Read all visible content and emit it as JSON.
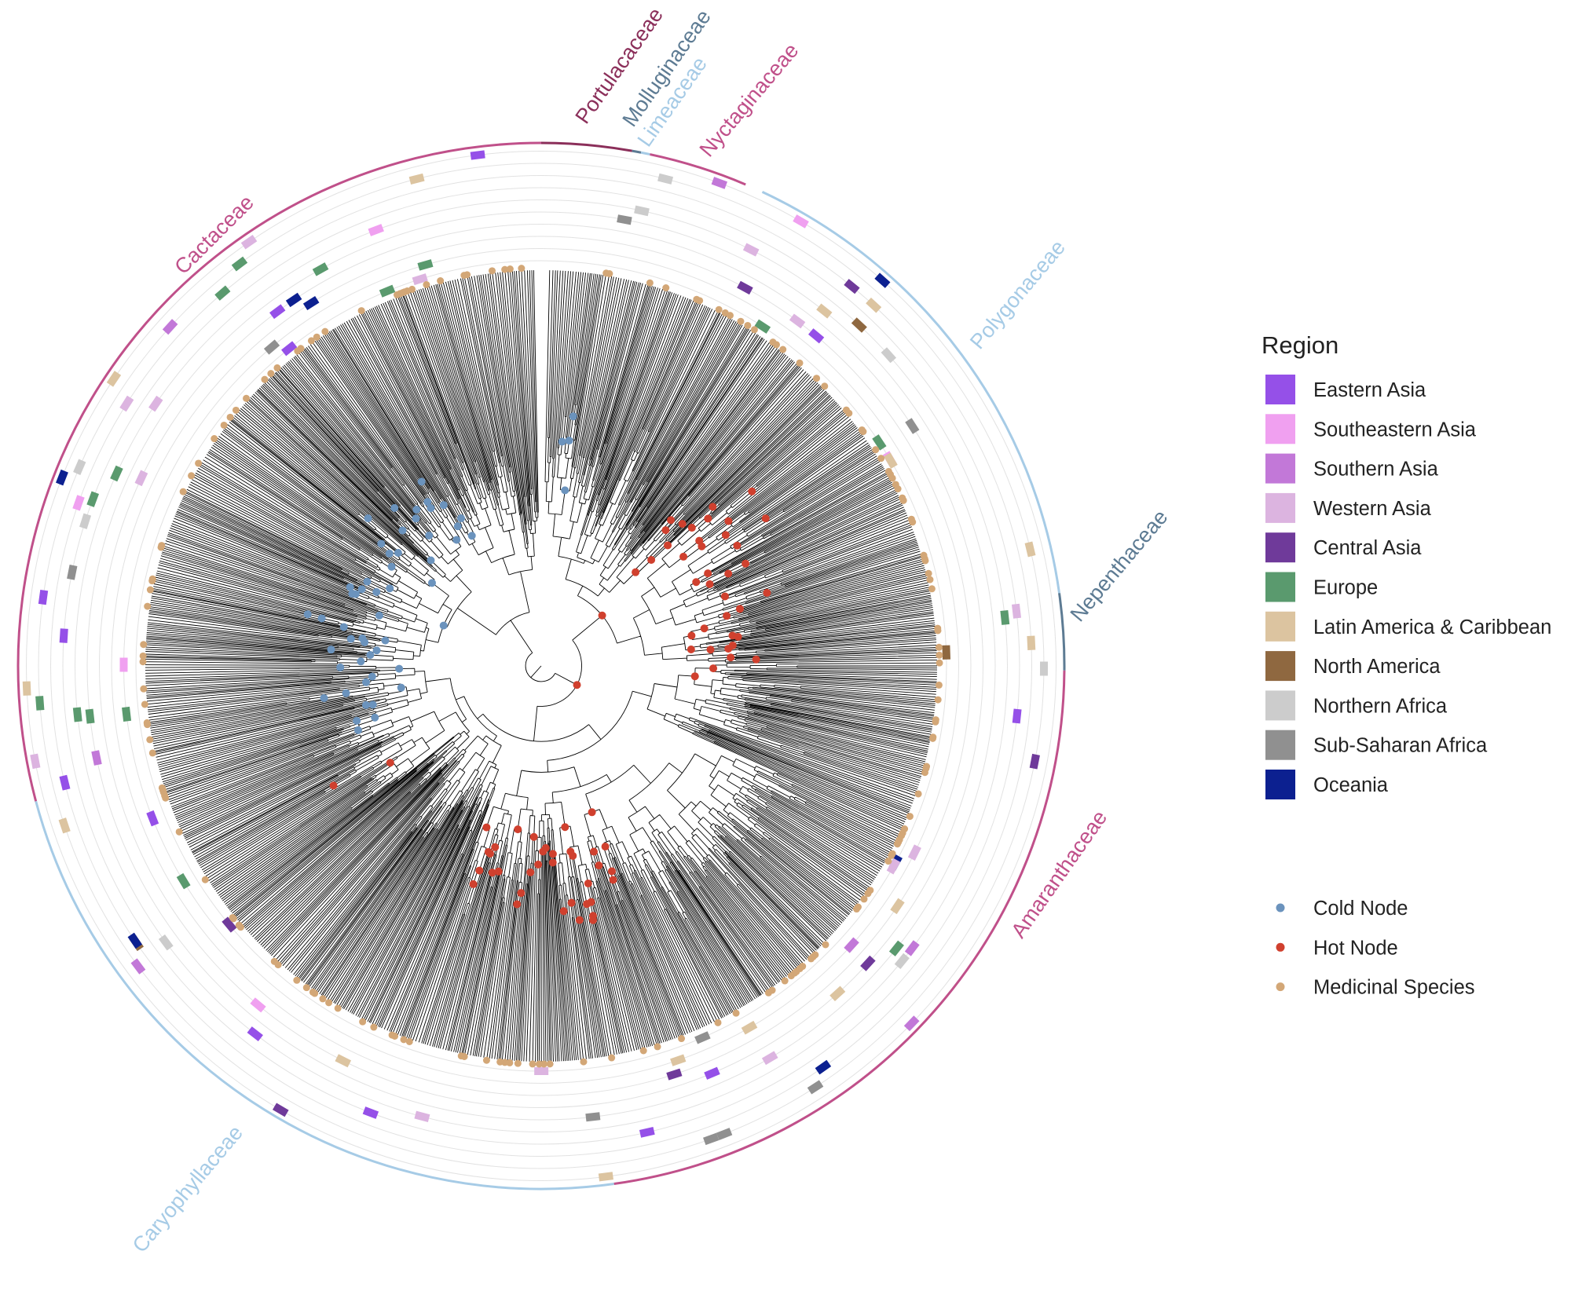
{
  "families": [
    {
      "name": "Portulacaceae",
      "color": "#8b2f5a"
    },
    {
      "name": "Molluginaceae",
      "color": "#5d7b93"
    },
    {
      "name": "Limeaceae",
      "color": "#a6cbe6"
    },
    {
      "name": "Nyctaginaceae",
      "color": "#c0508a"
    },
    {
      "name": "Cactaceae",
      "color": "#c0508a"
    },
    {
      "name": "Polygonaceae",
      "color": "#a6cbe6"
    },
    {
      "name": "Nepenthaceae",
      "color": "#5d7b93"
    },
    {
      "name": "Amaranthaceae",
      "color": "#c0508a"
    },
    {
      "name": "Caryophyllaceae",
      "color": "#a6cbe6"
    }
  ],
  "legend": {
    "title": "Region",
    "regions": [
      {
        "name": "Eastern Asia",
        "color": "#9550e8"
      },
      {
        "name": "Southeastern Asia",
        "color": "#f0a0f0"
      },
      {
        "name": "Southern Asia",
        "color": "#c278d8"
      },
      {
        "name": "Western Asia",
        "color": "#dcb4e0"
      },
      {
        "name": "Central Asia",
        "color": "#6f3a9a"
      },
      {
        "name": "Europe",
        "color": "#5a9a6e"
      },
      {
        "name": "Latin America & Caribbean",
        "color": "#dcc4a0"
      },
      {
        "name": "North America",
        "color": "#8f6840"
      },
      {
        "name": "Northern Africa",
        "color": "#cccccc"
      },
      {
        "name": "Sub-Saharan Africa",
        "color": "#909090"
      },
      {
        "name": "Oceania",
        "color": "#0c2090"
      }
    ],
    "nodes": [
      {
        "name": "Cold Node",
        "color": "#6b93bd"
      },
      {
        "name": "Hot Node",
        "color": "#d0402e"
      },
      {
        "name": "Medicinal Species",
        "color": "#d3a777"
      }
    ]
  }
}
